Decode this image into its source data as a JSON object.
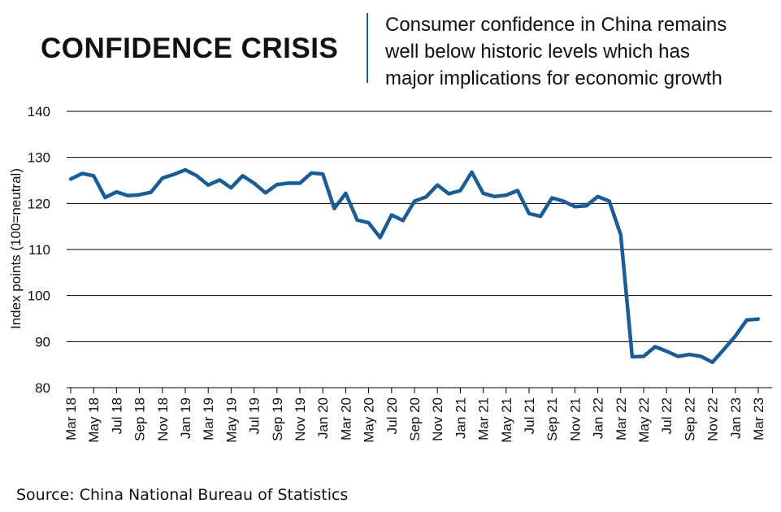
{
  "headline": "CONFIDENCE CRISIS",
  "subtitle_lines": [
    "Consumer confidence in China remains",
    "well below historic levels which has",
    "major implications for economic growth"
  ],
  "source": "Source: China National Bureau of Statistics",
  "colors": {
    "line": "#1a5d96",
    "divider": "#1a5d96",
    "grid": "#000000",
    "text": "#111111"
  },
  "chart_data": {
    "type": "line",
    "title": "CONFIDENCE CRISIS",
    "xlabel": "",
    "ylabel": "Index points (100=neutral)",
    "ylim": [
      80,
      140
    ],
    "yticks": [
      80,
      90,
      100,
      110,
      120,
      130,
      140
    ],
    "grid": "horizontal",
    "x_tick_labels": [
      "Mar 18",
      "May 18",
      "Jul 18",
      "Sep 18",
      "Nov 18",
      "Jan 19",
      "Mar 19",
      "May 19",
      "Jul 19",
      "Sep 19",
      "Nov 19",
      "Jan 20",
      "Mar 20",
      "May 20",
      "Jul 20",
      "Sep 20",
      "Nov 20",
      "Jan 21",
      "Mar 21",
      "May 21",
      "Jul 21",
      "Sep 21",
      "Nov 21",
      "Jan 22",
      "Mar 22",
      "May 22",
      "Jul 22",
      "Sep 22",
      "Nov 22",
      "Jan 23",
      "Mar 23"
    ],
    "series": [
      {
        "x": [
          "Mar 18",
          "Apr 18",
          "May 18",
          "Jun 18",
          "Jul 18",
          "Aug 18",
          "Sep 18",
          "Oct 18",
          "Nov 18",
          "Dec 18",
          "Jan 19",
          "Feb 19",
          "Mar 19",
          "Apr 19",
          "May 19",
          "Jun 19",
          "Jul 19",
          "Aug 19",
          "Sep 19",
          "Oct 19",
          "Nov 19",
          "Dec 19",
          "Jan 20",
          "Feb 20",
          "Mar 20",
          "Apr 20",
          "May 20",
          "Jun 20",
          "Jul 20",
          "Aug 20",
          "Sep 20",
          "Oct 20",
          "Nov 20",
          "Dec 20",
          "Jan 21",
          "Feb 21",
          "Mar 21",
          "Apr 21",
          "May 21",
          "Jun 21",
          "Jul 21",
          "Aug 21",
          "Sep 21",
          "Oct 21",
          "Nov 21",
          "Dec 21",
          "Jan 22",
          "Feb 22",
          "Mar 22",
          "Apr 22",
          "May 22",
          "Jun 22",
          "Jul 22",
          "Aug 22",
          "Sep 22",
          "Oct 22",
          "Nov 22",
          "Dec 22",
          "Jan 23",
          "Feb 23",
          "Mar 23"
        ],
        "values": [
          125.3,
          126.5,
          126.0,
          121.3,
          122.5,
          121.7,
          121.9,
          122.4,
          125.5,
          126.3,
          127.3,
          126.0,
          124.0,
          125.1,
          123.4,
          126.0,
          124.4,
          122.3,
          124.1,
          124.4,
          124.4,
          126.6,
          126.4,
          118.9,
          122.2,
          116.4,
          115.8,
          112.6,
          117.5,
          116.3,
          120.5,
          121.4,
          124.0,
          122.1,
          122.8,
          126.8,
          122.2,
          121.5,
          121.8,
          122.8,
          117.8,
          117.2,
          121.2,
          120.5,
          119.3,
          119.5,
          121.5,
          120.5,
          113.2,
          86.7,
          86.8,
          88.9,
          87.9,
          86.8,
          87.2,
          86.8,
          85.5,
          88.3,
          91.2,
          94.7,
          94.9
        ]
      }
    ]
  }
}
